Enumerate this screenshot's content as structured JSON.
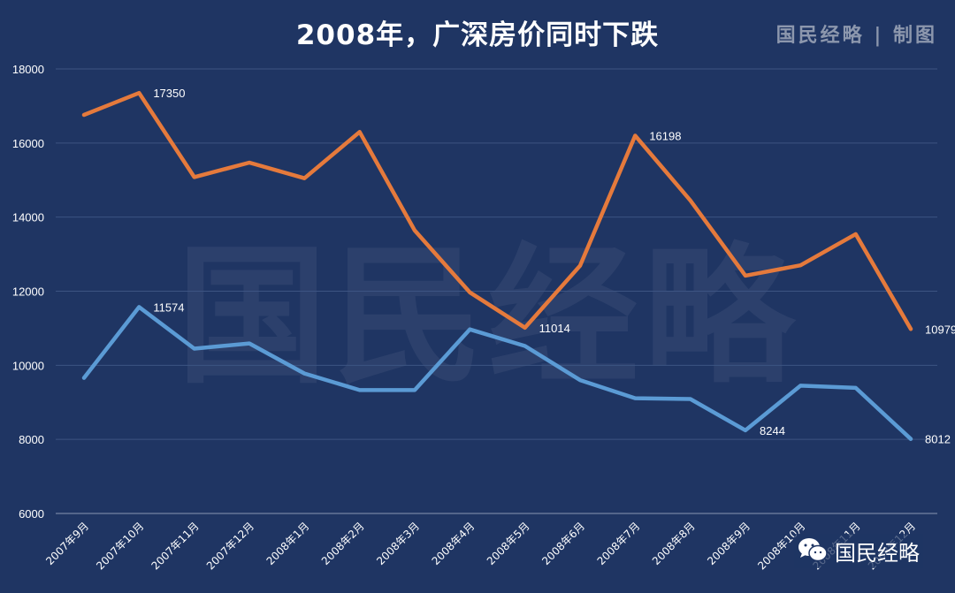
{
  "title": "2008年，广深房价同时下跌",
  "brand": "国民经略 | 制图",
  "watermark": "国民经略",
  "footer": {
    "text": "国民经略",
    "icon": "wechat-icon"
  },
  "chart_data": {
    "type": "line",
    "title": "2008年，广深房价同时下跌",
    "categories": [
      "2007年9月",
      "2007年10月",
      "2007年11月",
      "2007年12月",
      "2008年1月",
      "2008年2月",
      "2008年3月",
      "2008年4月",
      "2008年5月",
      "2008年6月",
      "2008年7月",
      "2008年8月",
      "2008年9月",
      "2008年10月",
      "2008年11月",
      "2008年12月"
    ],
    "ylim": [
      6000,
      18000
    ],
    "yticks": [
      6000,
      8000,
      10000,
      12000,
      14000,
      16000,
      18000
    ],
    "grid": true,
    "series": [
      {
        "color": "#e57a3c",
        "values": [
          16760,
          17350,
          15080,
          15470,
          15050,
          16300,
          13640,
          11970,
          11014,
          12690,
          16198,
          14450,
          12420,
          12700,
          13540,
          10979
        ],
        "labeled_points": [
          1,
          8,
          10,
          15
        ]
      },
      {
        "color": "#5b9bd5",
        "values": [
          9660,
          11574,
          10450,
          10590,
          9780,
          9330,
          9330,
          10970,
          10520,
          9600,
          9110,
          9090,
          8244,
          9450,
          9390,
          8012
        ],
        "labeled_points": [
          1,
          12,
          15
        ]
      }
    ]
  }
}
